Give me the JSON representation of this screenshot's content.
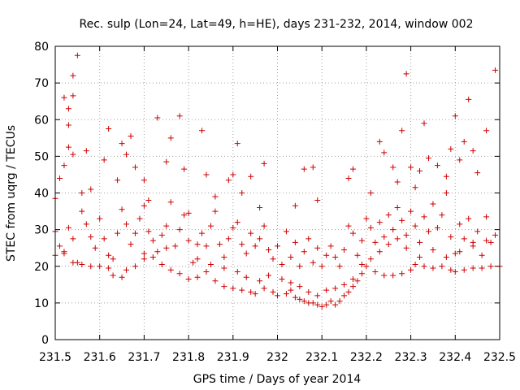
{
  "chart_data": {
    "type": "scatter",
    "title": "Rec. sulp (Lon=24, Lat=49, h=HE), days 231-232, 2014, window 002",
    "xlabel": "GPS time / Days of year 2014",
    "ylabel": "STEC from uqrg / TECUs",
    "xlim": [
      231.5,
      232.5
    ],
    "ylim": [
      0,
      80
    ],
    "x_ticks": [
      231.5,
      231.6,
      231.7,
      231.8,
      231.9,
      232,
      232.1,
      232.2,
      232.3,
      232.4,
      232.5
    ],
    "x_tick_labels": [
      "231.5",
      "231.6",
      "231.7",
      "231.8",
      "231.9",
      "232",
      "232.1",
      "232.2",
      "232.3",
      "232.4",
      "232.5"
    ],
    "y_ticks": [
      0,
      10,
      20,
      30,
      40,
      50,
      60,
      70,
      80
    ],
    "y_tick_labels": [
      "0",
      "10",
      "20",
      "30",
      "40",
      "50",
      "60",
      "70",
      "80"
    ],
    "grid": true,
    "marker": "plus",
    "color": "#cc0000",
    "points": [
      [
        231.5,
        38.5
      ],
      [
        231.51,
        44.0
      ],
      [
        231.52,
        66.0
      ],
      [
        231.52,
        47.5
      ],
      [
        231.53,
        63.0
      ],
      [
        231.53,
        58.5
      ],
      [
        231.53,
        52.5
      ],
      [
        231.54,
        72.0
      ],
      [
        231.54,
        66.5
      ],
      [
        231.54,
        50.5
      ],
      [
        231.55,
        77.5
      ],
      [
        231.56,
        40.0
      ],
      [
        231.57,
        51.5
      ],
      [
        231.58,
        41.0
      ],
      [
        231.61,
        49.0
      ],
      [
        231.62,
        57.5
      ],
      [
        231.64,
        43.5
      ],
      [
        231.65,
        53.5
      ],
      [
        231.66,
        50.5
      ],
      [
        231.67,
        55.5
      ],
      [
        231.68,
        47.0
      ],
      [
        231.7,
        43.5
      ],
      [
        231.71,
        38.0
      ],
      [
        231.73,
        60.5
      ],
      [
        231.75,
        48.5
      ],
      [
        231.76,
        55.0
      ],
      [
        231.78,
        61.0
      ],
      [
        231.79,
        46.5
      ],
      [
        231.8,
        34.5
      ],
      [
        231.83,
        57.0
      ],
      [
        231.84,
        45.0
      ],
      [
        231.86,
        39.0
      ],
      [
        231.89,
        43.5
      ],
      [
        231.9,
        45.0
      ],
      [
        231.91,
        53.5
      ],
      [
        231.92,
        40.0
      ],
      [
        231.94,
        44.5
      ],
      [
        231.96,
        36.0
      ],
      [
        231.97,
        48.0
      ],
      [
        232.04,
        36.5
      ],
      [
        232.06,
        46.5
      ],
      [
        232.08,
        47.0
      ],
      [
        232.09,
        38.0
      ],
      [
        232.16,
        44.0
      ],
      [
        232.17,
        46.5
      ],
      [
        232.21,
        40.0
      ],
      [
        232.23,
        54.0
      ],
      [
        232.24,
        51.0
      ],
      [
        232.26,
        47.0
      ],
      [
        232.27,
        43.0
      ],
      [
        232.28,
        57.0
      ],
      [
        232.29,
        72.5
      ],
      [
        232.3,
        47.0
      ],
      [
        232.31,
        41.5
      ],
      [
        232.32,
        46.0
      ],
      [
        232.33,
        59.0
      ],
      [
        232.34,
        49.5
      ],
      [
        232.36,
        47.5
      ],
      [
        232.38,
        44.5
      ],
      [
        232.39,
        52.0
      ],
      [
        232.4,
        61.0
      ],
      [
        232.41,
        49.0
      ],
      [
        232.42,
        54.0
      ],
      [
        232.43,
        65.5
      ],
      [
        232.44,
        51.5
      ],
      [
        232.45,
        45.5
      ],
      [
        232.47,
        57.0
      ],
      [
        232.49,
        73.5
      ],
      [
        231.5,
        29.5
      ],
      [
        231.51,
        25.5
      ],
      [
        231.52,
        23.5
      ],
      [
        231.53,
        30.5
      ],
      [
        231.54,
        27.5
      ],
      [
        231.55,
        21.0
      ],
      [
        231.56,
        35.0
      ],
      [
        231.57,
        31.5
      ],
      [
        231.58,
        28.0
      ],
      [
        231.59,
        25.0
      ],
      [
        231.6,
        33.0
      ],
      [
        231.61,
        27.5
      ],
      [
        231.62,
        23.0
      ],
      [
        231.63,
        22.0
      ],
      [
        231.64,
        29.0
      ],
      [
        231.65,
        35.5
      ],
      [
        231.66,
        31.5
      ],
      [
        231.67,
        26.0
      ],
      [
        231.68,
        29.0
      ],
      [
        231.69,
        33.0
      ],
      [
        231.7,
        36.5
      ],
      [
        231.71,
        29.5
      ],
      [
        231.72,
        27.0
      ],
      [
        231.73,
        24.0
      ],
      [
        231.74,
        28.5
      ],
      [
        231.75,
        31.0
      ],
      [
        231.76,
        37.5
      ],
      [
        231.77,
        25.5
      ],
      [
        231.78,
        30.0
      ],
      [
        231.79,
        34.0
      ],
      [
        231.8,
        27.0
      ],
      [
        231.81,
        21.0
      ],
      [
        231.82,
        26.0
      ],
      [
        231.83,
        29.0
      ],
      [
        231.84,
        25.5
      ],
      [
        231.85,
        31.0
      ],
      [
        231.86,
        35.0
      ],
      [
        231.87,
        26.0
      ],
      [
        231.88,
        22.5
      ],
      [
        231.89,
        27.5
      ],
      [
        231.9,
        30.5
      ],
      [
        231.91,
        32.0
      ],
      [
        231.92,
        26.0
      ],
      [
        231.93,
        23.5
      ],
      [
        231.94,
        29.0
      ],
      [
        231.95,
        25.5
      ],
      [
        231.96,
        27.5
      ],
      [
        231.97,
        31.0
      ],
      [
        231.98,
        24.5
      ],
      [
        231.99,
        22.0
      ],
      [
        232.0,
        25.5
      ],
      [
        232.01,
        20.5
      ],
      [
        232.02,
        29.5
      ],
      [
        232.03,
        22.5
      ],
      [
        232.04,
        26.5
      ],
      [
        232.05,
        20.0
      ],
      [
        232.06,
        24.0
      ],
      [
        232.07,
        27.5
      ],
      [
        232.08,
        21.0
      ],
      [
        232.09,
        25.0
      ],
      [
        232.1,
        20.0
      ],
      [
        232.11,
        23.0
      ],
      [
        232.12,
        25.5
      ],
      [
        232.13,
        22.5
      ],
      [
        232.14,
        20.0
      ],
      [
        232.15,
        24.5
      ],
      [
        232.16,
        31.0
      ],
      [
        232.17,
        29.0
      ],
      [
        232.18,
        23.0
      ],
      [
        232.19,
        27.0
      ],
      [
        232.2,
        33.0
      ],
      [
        232.21,
        30.5
      ],
      [
        232.22,
        26.5
      ],
      [
        232.23,
        32.0
      ],
      [
        232.24,
        28.0
      ],
      [
        232.25,
        34.0
      ],
      [
        232.26,
        30.0
      ],
      [
        232.27,
        36.0
      ],
      [
        232.28,
        32.5
      ],
      [
        232.29,
        28.5
      ],
      [
        232.3,
        35.0
      ],
      [
        232.31,
        31.0
      ],
      [
        232.32,
        26.5
      ],
      [
        232.33,
        33.5
      ],
      [
        232.34,
        29.5
      ],
      [
        232.35,
        37.0
      ],
      [
        232.36,
        30.5
      ],
      [
        232.37,
        34.0
      ],
      [
        232.38,
        40.0
      ],
      [
        232.39,
        28.0
      ],
      [
        232.4,
        23.5
      ],
      [
        232.41,
        31.5
      ],
      [
        232.42,
        27.5
      ],
      [
        232.43,
        33.0
      ],
      [
        232.44,
        25.5
      ],
      [
        232.45,
        29.5
      ],
      [
        232.46,
        23.0
      ],
      [
        232.47,
        33.5
      ],
      [
        232.48,
        26.5
      ],
      [
        232.49,
        28.5
      ],
      [
        231.5,
        23.0
      ],
      [
        231.52,
        24.0
      ],
      [
        231.54,
        21.0
      ],
      [
        231.56,
        20.5
      ],
      [
        231.58,
        20.0
      ],
      [
        231.6,
        20.0
      ],
      [
        231.62,
        19.5
      ],
      [
        231.63,
        17.5
      ],
      [
        231.65,
        17.0
      ],
      [
        231.66,
        19.0
      ],
      [
        231.68,
        20.0
      ],
      [
        231.7,
        22.0
      ],
      [
        231.72,
        22.5
      ],
      [
        231.74,
        20.5
      ],
      [
        231.76,
        19.0
      ],
      [
        231.78,
        18.0
      ],
      [
        231.8,
        16.5
      ],
      [
        231.82,
        17.0
      ],
      [
        231.84,
        18.5
      ],
      [
        231.86,
        16.0
      ],
      [
        231.88,
        14.5
      ],
      [
        231.9,
        14.0
      ],
      [
        231.92,
        13.5
      ],
      [
        231.94,
        13.0
      ],
      [
        231.95,
        12.5
      ],
      [
        231.97,
        14.0
      ],
      [
        231.99,
        13.0
      ],
      [
        232.0,
        12.0
      ],
      [
        232.02,
        12.5
      ],
      [
        232.03,
        13.5
      ],
      [
        232.04,
        11.5
      ],
      [
        232.05,
        11.0
      ],
      [
        232.06,
        10.5
      ],
      [
        232.07,
        10.0
      ],
      [
        232.08,
        10.0
      ],
      [
        232.09,
        9.5
      ],
      [
        232.1,
        9.0
      ],
      [
        232.11,
        9.5
      ],
      [
        232.12,
        10.5
      ],
      [
        232.13,
        9.5
      ],
      [
        232.14,
        10.5
      ],
      [
        232.15,
        12.0
      ],
      [
        232.16,
        13.0
      ],
      [
        232.17,
        14.5
      ],
      [
        232.18,
        16.0
      ],
      [
        232.19,
        18.0
      ],
      [
        232.2,
        20.0
      ],
      [
        232.22,
        18.5
      ],
      [
        232.24,
        17.5
      ],
      [
        232.26,
        17.5
      ],
      [
        232.28,
        18.0
      ],
      [
        232.3,
        19.0
      ],
      [
        232.31,
        20.5
      ],
      [
        232.33,
        20.0
      ],
      [
        232.35,
        19.5
      ],
      [
        232.37,
        20.0
      ],
      [
        232.39,
        19.0
      ],
      [
        232.4,
        18.5
      ],
      [
        232.42,
        19.0
      ],
      [
        232.44,
        19.5
      ],
      [
        232.46,
        19.5
      ],
      [
        232.48,
        20.0
      ],
      [
        232.5,
        20.0
      ],
      [
        231.7,
        23.5
      ],
      [
        231.75,
        25.0
      ],
      [
        231.82,
        22.0
      ],
      [
        231.85,
        20.5
      ],
      [
        231.88,
        19.5
      ],
      [
        231.91,
        18.5
      ],
      [
        231.93,
        17.0
      ],
      [
        231.96,
        16.0
      ],
      [
        231.98,
        17.5
      ],
      [
        232.01,
        16.5
      ],
      [
        232.03,
        15.5
      ],
      [
        232.05,
        14.5
      ],
      [
        232.07,
        13.0
      ],
      [
        232.09,
        12.0
      ],
      [
        232.11,
        13.5
      ],
      [
        232.13,
        14.0
      ],
      [
        232.15,
        15.0
      ],
      [
        232.17,
        16.5
      ],
      [
        232.19,
        20.5
      ],
      [
        232.21,
        22.0
      ],
      [
        232.23,
        24.0
      ],
      [
        232.25,
        26.0
      ],
      [
        232.27,
        27.5
      ],
      [
        232.29,
        25.0
      ],
      [
        232.32,
        22.5
      ],
      [
        232.35,
        24.5
      ],
      [
        232.38,
        22.5
      ],
      [
        232.41,
        24.0
      ],
      [
        232.44,
        26.5
      ],
      [
        232.47,
        27.0
      ]
    ]
  }
}
